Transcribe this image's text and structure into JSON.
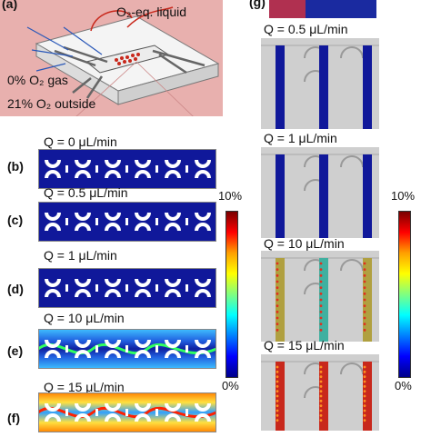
{
  "panel_a": {
    "letter": "(a)",
    "annotations": {
      "liquid": "O₂-eq. liquid",
      "gas": "0% O₂ gas",
      "outside": "21% O₂ outside"
    }
  },
  "panel_g": {
    "letter": "(g)"
  },
  "simulations": [
    {
      "letter": "(b)",
      "label": "Q = 0 μL/min"
    },
    {
      "letter": "(c)",
      "label": "Q = 0.5 μL/min"
    },
    {
      "letter": "(d)",
      "label": "Q = 1 μL/min"
    },
    {
      "letter": "(e)",
      "label": "Q = 10 μL/min"
    },
    {
      "letter": "(f)",
      "label": "Q = 15 μL/min"
    }
  ],
  "experiments": [
    {
      "label": "Q = 0.5 μL/min"
    },
    {
      "label": "Q = 1 μL/min"
    },
    {
      "label": "Q = 10 μL/min"
    },
    {
      "label": "Q = 15 μL/min"
    }
  ],
  "colorbar": {
    "max_label": "10%",
    "min_label": "0%",
    "colormap": "jet"
  },
  "colors": {
    "chip_bg": "#e8b0ae",
    "low_o2": "#10189a",
    "high_o2": "#c8281c"
  }
}
